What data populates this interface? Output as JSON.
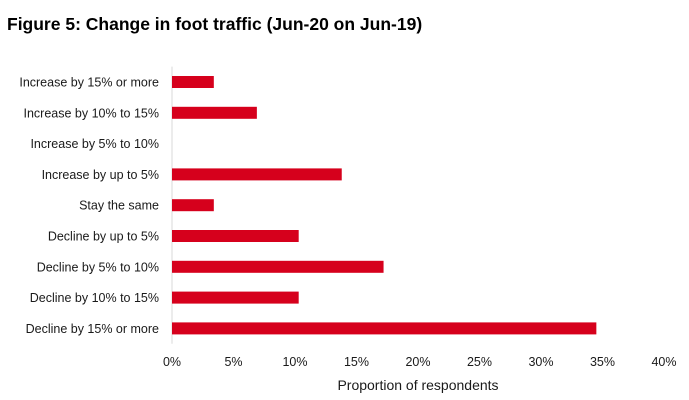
{
  "chart_data": {
    "type": "bar",
    "orientation": "horizontal",
    "title": "Figure 5: Change in foot traffic (Jun-20 on Jun-19)",
    "xlabel": "Proportion of respondents",
    "ylabel": "",
    "categories": [
      "Increase by 15% or more",
      "Increase by 10% to 15%",
      "Increase by 5% to 10%",
      "Increase by up to 5%",
      "Stay the same",
      "Decline by up to 5%",
      "Decline by 5% to 10%",
      "Decline by 10% to 15%",
      "Decline by 15% or more"
    ],
    "values": [
      3.4,
      6.9,
      0,
      13.8,
      3.4,
      10.3,
      17.2,
      10.3,
      34.5
    ],
    "xlim": [
      0,
      40
    ],
    "xticks": [
      0,
      5,
      10,
      15,
      20,
      25,
      30,
      35,
      40
    ],
    "xtick_labels": [
      "0%",
      "5%",
      "10%",
      "15%",
      "20%",
      "25%",
      "30%",
      "35%",
      "40%"
    ],
    "bar_color": "#d6001c",
    "grid": false,
    "legend": "none"
  }
}
